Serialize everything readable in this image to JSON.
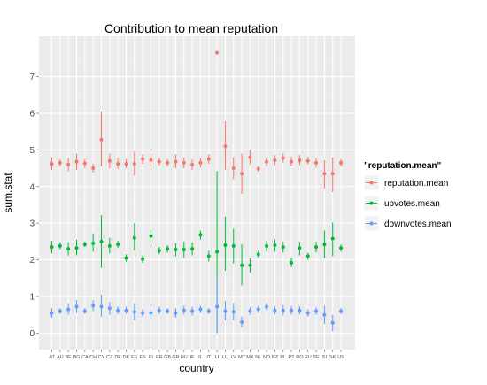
{
  "chart_data": {
    "type": "scatter",
    "title": "Contribution to mean reputation",
    "xlabel": "country",
    "ylabel": "sum.stat",
    "ylim": [
      -0.45,
      8.1
    ],
    "yticks": [
      0,
      1,
      2,
      3,
      4,
      5,
      6,
      7
    ],
    "grid": true,
    "legend": {
      "title": "\"reputation.mean\"",
      "position": "right"
    },
    "categories": [
      "AT",
      "AU",
      "BE",
      "BG",
      "CA",
      "CH",
      "CY",
      "CZ",
      "DE",
      "DK",
      "EE",
      "ES",
      "FI",
      "FR",
      "GB",
      "GR",
      "HU",
      "IE",
      "IL",
      "IT",
      "LI",
      "LU",
      "LV",
      "MT",
      "MX",
      "NL",
      "NO",
      "NZ",
      "PL",
      "PT",
      "RO",
      "RU",
      "SE",
      "SI",
      "SK",
      "US"
    ],
    "series": [
      {
        "name": "reputation.mean",
        "color": "#F8766D",
        "values": [
          4.62,
          4.65,
          4.6,
          4.68,
          4.63,
          4.5,
          5.28,
          4.7,
          4.62,
          4.62,
          4.62,
          4.75,
          4.72,
          4.68,
          4.65,
          4.68,
          4.65,
          4.6,
          4.65,
          4.75,
          7.65,
          5.1,
          4.5,
          4.35,
          4.8,
          4.48,
          4.68,
          4.72,
          4.78,
          4.68,
          4.72,
          4.7,
          4.65,
          4.35,
          4.35,
          4.65
        ],
        "lower": [
          4.45,
          4.55,
          4.42,
          4.45,
          4.5,
          4.38,
          4.55,
          4.5,
          4.48,
          4.5,
          4.3,
          4.62,
          4.55,
          4.58,
          4.55,
          4.5,
          4.5,
          4.45,
          4.52,
          4.62,
          7.65,
          4.45,
          4.2,
          3.8,
          4.6,
          4.4,
          4.55,
          4.58,
          4.65,
          4.55,
          4.58,
          4.6,
          4.52,
          3.95,
          3.85,
          4.55
        ],
        "upper": [
          4.8,
          4.75,
          4.78,
          4.9,
          4.75,
          4.62,
          6.05,
          4.9,
          4.78,
          4.75,
          4.95,
          4.88,
          4.9,
          4.78,
          4.75,
          4.88,
          4.8,
          4.75,
          4.78,
          4.88,
          7.65,
          5.78,
          4.8,
          4.9,
          5.0,
          4.56,
          4.8,
          4.86,
          4.92,
          4.82,
          4.86,
          4.82,
          4.78,
          4.72,
          4.8,
          4.75
        ]
      },
      {
        "name": "upvotes.mean",
        "color": "#00BA38",
        "values": [
          2.35,
          2.38,
          2.3,
          2.32,
          2.42,
          2.45,
          2.5,
          2.38,
          2.42,
          2.05,
          2.6,
          2.02,
          2.65,
          2.25,
          2.3,
          2.28,
          2.28,
          2.3,
          2.68,
          2.1,
          2.22,
          2.4,
          2.38,
          1.85,
          1.85,
          2.15,
          2.38,
          2.4,
          2.35,
          1.92,
          2.32,
          2.1,
          2.35,
          2.42,
          2.58,
          2.32
        ],
        "lower": [
          2.18,
          2.28,
          2.12,
          2.12,
          2.35,
          2.22,
          1.78,
          2.18,
          2.32,
          1.95,
          2.25,
          1.92,
          2.48,
          2.15,
          2.2,
          2.1,
          2.05,
          2.12,
          2.55,
          1.95,
          0.0,
          1.7,
          1.9,
          1.3,
          1.65,
          2.05,
          2.22,
          2.22,
          2.2,
          1.8,
          2.12,
          2.0,
          2.2,
          2.05,
          2.1,
          2.22
        ],
        "upper": [
          2.52,
          2.48,
          2.48,
          2.55,
          2.5,
          2.72,
          3.22,
          2.6,
          2.52,
          2.15,
          3.0,
          2.12,
          2.82,
          2.35,
          2.4,
          2.45,
          2.5,
          2.48,
          2.8,
          2.25,
          4.42,
          3.18,
          2.85,
          2.42,
          2.05,
          2.25,
          2.52,
          2.56,
          2.5,
          2.05,
          2.5,
          2.2,
          2.5,
          2.8,
          3.02,
          2.42
        ]
      },
      {
        "name": "downvotes.mean",
        "color": "#619CFF",
        "values": [
          0.55,
          0.6,
          0.65,
          0.72,
          0.6,
          0.75,
          0.72,
          0.68,
          0.62,
          0.62,
          0.58,
          0.55,
          0.55,
          0.62,
          0.6,
          0.55,
          0.62,
          0.6,
          0.65,
          0.6,
          0.72,
          0.6,
          0.58,
          0.3,
          0.6,
          0.65,
          0.72,
          0.62,
          0.62,
          0.62,
          0.62,
          0.55,
          0.6,
          0.5,
          0.28,
          0.6
        ],
        "lower": [
          0.42,
          0.52,
          0.5,
          0.55,
          0.52,
          0.6,
          0.45,
          0.5,
          0.52,
          0.52,
          0.35,
          0.45,
          0.45,
          0.52,
          0.52,
          0.42,
          0.5,
          0.48,
          0.55,
          0.52,
          0.0,
          0.35,
          0.35,
          0.15,
          0.5,
          0.55,
          0.62,
          0.5,
          0.48,
          0.5,
          0.5,
          0.45,
          0.5,
          0.25,
          0.05,
          0.52
        ],
        "upper": [
          0.68,
          0.68,
          0.8,
          0.9,
          0.68,
          0.9,
          1.05,
          0.85,
          0.72,
          0.72,
          0.8,
          0.65,
          0.65,
          0.72,
          0.68,
          0.68,
          0.75,
          0.72,
          0.75,
          0.68,
          1.5,
          0.88,
          0.82,
          0.45,
          0.7,
          0.75,
          0.82,
          0.74,
          0.76,
          0.74,
          0.74,
          0.65,
          0.7,
          0.75,
          0.5,
          0.68
        ]
      }
    ]
  }
}
